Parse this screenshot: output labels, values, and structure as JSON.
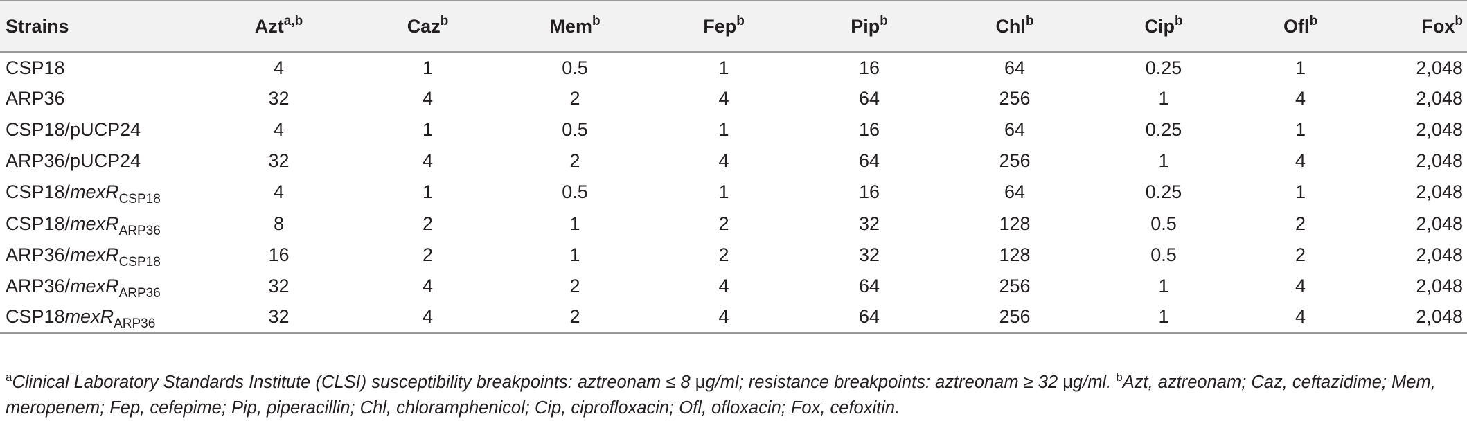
{
  "table": {
    "headers": [
      {
        "label": "Strains",
        "sup": ""
      },
      {
        "label": "Azt",
        "sup": "a,b"
      },
      {
        "label": "Caz",
        "sup": "b"
      },
      {
        "label": "Mem",
        "sup": "b"
      },
      {
        "label": "Fep",
        "sup": "b"
      },
      {
        "label": "Pip",
        "sup": "b"
      },
      {
        "label": "Chl",
        "sup": "b"
      },
      {
        "label": "Cip",
        "sup": "b"
      },
      {
        "label": "Ofl",
        "sup": "b"
      },
      {
        "label": "Fox",
        "sup": "b"
      }
    ],
    "rows": [
      {
        "strain": {
          "prefix": "CSP18",
          "gene": "",
          "sub": ""
        },
        "values": [
          "4",
          "1",
          "0.5",
          "1",
          "16",
          "64",
          "0.25",
          "1",
          "2,048"
        ]
      },
      {
        "strain": {
          "prefix": "ARP36",
          "gene": "",
          "sub": ""
        },
        "values": [
          "32",
          "4",
          "2",
          "4",
          "64",
          "256",
          "1",
          "4",
          "2,048"
        ]
      },
      {
        "strain": {
          "prefix": "CSP18/pUCP24",
          "gene": "",
          "sub": ""
        },
        "values": [
          "4",
          "1",
          "0.5",
          "1",
          "16",
          "64",
          "0.25",
          "1",
          "2,048"
        ]
      },
      {
        "strain": {
          "prefix": "ARP36/pUCP24",
          "gene": "",
          "sub": ""
        },
        "values": [
          "32",
          "4",
          "2",
          "4",
          "64",
          "256",
          "1",
          "4",
          "2,048"
        ]
      },
      {
        "strain": {
          "prefix": "CSP18/",
          "gene": "mexR",
          "sub": "CSP18"
        },
        "values": [
          "4",
          "1",
          "0.5",
          "1",
          "16",
          "64",
          "0.25",
          "1",
          "2,048"
        ]
      },
      {
        "strain": {
          "prefix": "CSP18/",
          "gene": "mexR",
          "sub": "ARP36"
        },
        "values": [
          "8",
          "2",
          "1",
          "2",
          "32",
          "128",
          "0.5",
          "2",
          "2,048"
        ]
      },
      {
        "strain": {
          "prefix": "ARP36/",
          "gene": "mexR",
          "sub": "CSP18"
        },
        "values": [
          "16",
          "2",
          "1",
          "2",
          "32",
          "128",
          "0.5",
          "2",
          "2,048"
        ]
      },
      {
        "strain": {
          "prefix": "ARP36/",
          "gene": "mexR",
          "sub": "ARP36"
        },
        "values": [
          "32",
          "4",
          "2",
          "4",
          "64",
          "256",
          "1",
          "4",
          "2,048"
        ]
      },
      {
        "strain": {
          "prefix": "CSP18",
          "gene": "mexR",
          "sub": "ARP36"
        },
        "values": [
          "32",
          "4",
          "2",
          "4",
          "64",
          "256",
          "1",
          "4",
          "2,048"
        ]
      }
    ]
  },
  "footnote": {
    "a_mark": "a",
    "a_text_1": "Clinical Laboratory Standards Institute (CLSI) susceptibility breakpoints: aztreonam ≤ 8 ",
    "mu": "μ",
    "a_text_2": "g/ml; resistance breakpoints: aztreonam ≥ 32 ",
    "a_text_3": "g/ml. ",
    "b_mark": "b",
    "b_text": "Azt, aztreonam; Caz, ceftazidime; Mem, meropenem; Fep, cefepime; Pip, piperacillin; Chl, chloramphenicol; Cip, ciprofloxacin; Ofl, ofloxacin; Fox, cefoxitin."
  }
}
